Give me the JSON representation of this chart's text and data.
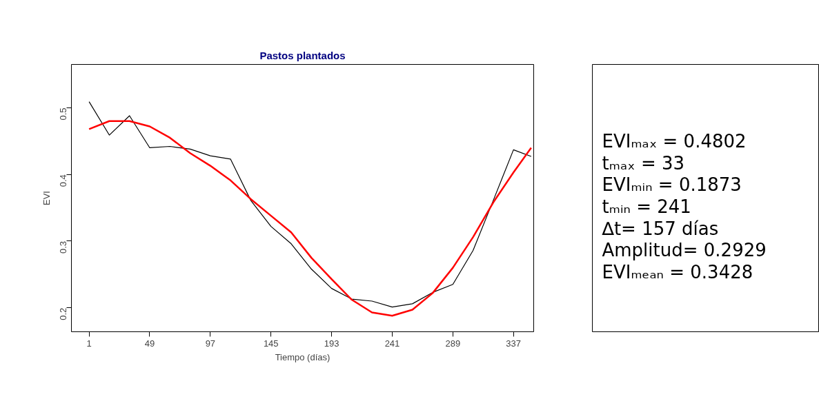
{
  "chart_data": {
    "type": "line",
    "title": "Pastos plantados",
    "xlabel": "Tiempo (días)",
    "ylabel": "EVI",
    "x": [
      1,
      17,
      33,
      49,
      65,
      81,
      97,
      113,
      129,
      145,
      161,
      177,
      193,
      209,
      225,
      241,
      257,
      273,
      289,
      305,
      321,
      337,
      351
    ],
    "series": [
      {
        "color": "#000000",
        "values": [
          0.509,
          0.459,
          0.488,
          0.44,
          0.442,
          0.438,
          0.428,
          0.423,
          0.361,
          0.322,
          0.296,
          0.258,
          0.229,
          0.213,
          0.21,
          0.201,
          0.206,
          0.223,
          0.235,
          0.286,
          0.361,
          0.437,
          0.427
        ]
      },
      {
        "color": "#ff0000",
        "values": [
          0.468,
          0.48,
          0.48,
          0.472,
          0.455,
          0.432,
          0.413,
          0.391,
          0.363,
          0.338,
          0.313,
          0.275,
          0.243,
          0.212,
          0.193,
          0.188,
          0.197,
          0.222,
          0.26,
          0.306,
          0.358,
          0.403,
          0.44
        ]
      }
    ],
    "xlim": [
      -13,
      353
    ],
    "ylim": [
      0.164,
      0.565
    ],
    "xticks": [
      1,
      49,
      97,
      145,
      193,
      241,
      289,
      337
    ],
    "yticks": [
      0.2,
      0.3,
      0.4,
      0.5
    ],
    "annotations": [
      "EVIₘₐₓ = 0.4802",
      "tₘₐₓ = 33",
      "EVIₘᵢₙ = 0.1873",
      "tₘᵢₙ = 241",
      "∆t= 157 días",
      "Amplitud= 0.2929",
      "EVIₘₑₐₙ = 0.3428"
    ]
  }
}
